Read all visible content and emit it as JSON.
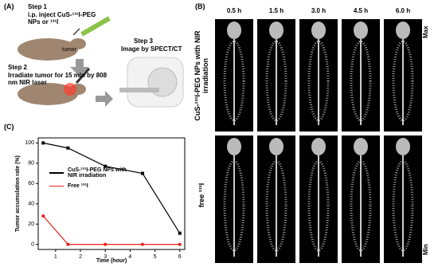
{
  "panel_a": {
    "label": "(A)",
    "step1_title": "Step 1",
    "step1_text": "i.p. inject CuS-¹³¹I-PEG NPs or ¹³¹I",
    "tumor": "tumor",
    "step2_title": "Step 2",
    "step2_text": "Irradiate tumor for 15 min by 808 nm NIR laser",
    "step3_title": "Step 3",
    "step3_text": "Image by SPECT/CT"
  },
  "panel_b": {
    "label": "(B)",
    "times": [
      "0.5 h",
      "1.5 h",
      "3.0 h",
      "4.5 h",
      "6.0 h"
    ],
    "rows": [
      "CuS-¹³¹I-PEG NPs with NIR irradiation",
      "free ¹³¹I"
    ],
    "scale_max": "Max",
    "scale_min": "Min"
  },
  "chart_data": {
    "type": "line",
    "panel_label": "(C)",
    "x_label": "Time (hour)",
    "y_label": "Tumor accumulation rate (%)",
    "x": [
      0.5,
      1.5,
      3,
      4.5,
      6
    ],
    "series": [
      {
        "name": "CuS-¹³¹I-PEG NPs with NIR irradiation",
        "color": "#000000",
        "values": [
          100,
          95,
          77,
          70,
          11
        ]
      },
      {
        "name": "Free ¹³¹I",
        "color": "#e8201c",
        "values": [
          28,
          0,
          0,
          0,
          0
        ]
      }
    ],
    "xlim": [
      0.3,
      6.2
    ],
    "xticks": [
      1,
      2,
      3,
      4,
      5,
      6
    ],
    "ylim": [
      -5,
      105
    ],
    "yticks": [
      0,
      20,
      40,
      60,
      80,
      100
    ]
  }
}
